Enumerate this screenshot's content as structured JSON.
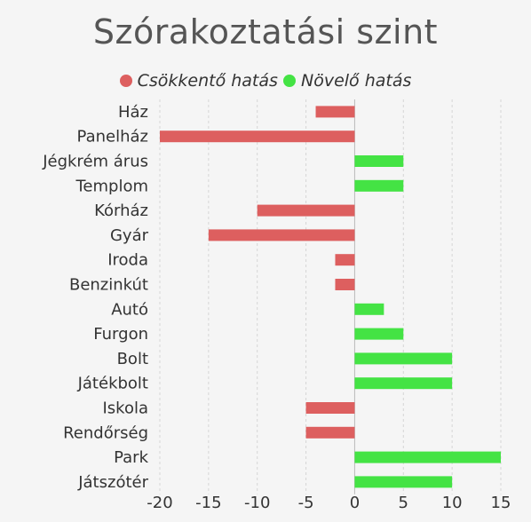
{
  "chart_data": {
    "type": "bar",
    "orientation": "horizontal",
    "title": "Szórakoztatási szint",
    "categories": [
      "Ház",
      "Panelház",
      "Jégkrém árus",
      "Templom",
      "Kórház",
      "Gyár",
      "Iroda",
      "Benzinkút",
      "Autó",
      "Furgon",
      "Bolt",
      "Játékbolt",
      "Iskola",
      "Rendőrség",
      "Park",
      "Játszótér"
    ],
    "values": [
      -4,
      -20,
      5,
      5,
      -10,
      -15,
      -2,
      -2,
      3,
      5,
      10,
      10,
      -5,
      -5,
      15,
      10
    ],
    "legend": [
      {
        "label": "Csökkentő hatás",
        "color": "#dd5f5f"
      },
      {
        "label": "Növelő hatás",
        "color": "#44e344"
      }
    ],
    "legend_position": "top",
    "xlim": [
      -20,
      15
    ],
    "xticks": [
      -20,
      -15,
      -10,
      -5,
      0,
      5,
      10,
      15
    ],
    "grid": true,
    "colors": {
      "negative": "#dd5f5f",
      "positive": "#44e344",
      "grid": "#d6d6d6",
      "zero_line": "#bbbbbb"
    }
  }
}
